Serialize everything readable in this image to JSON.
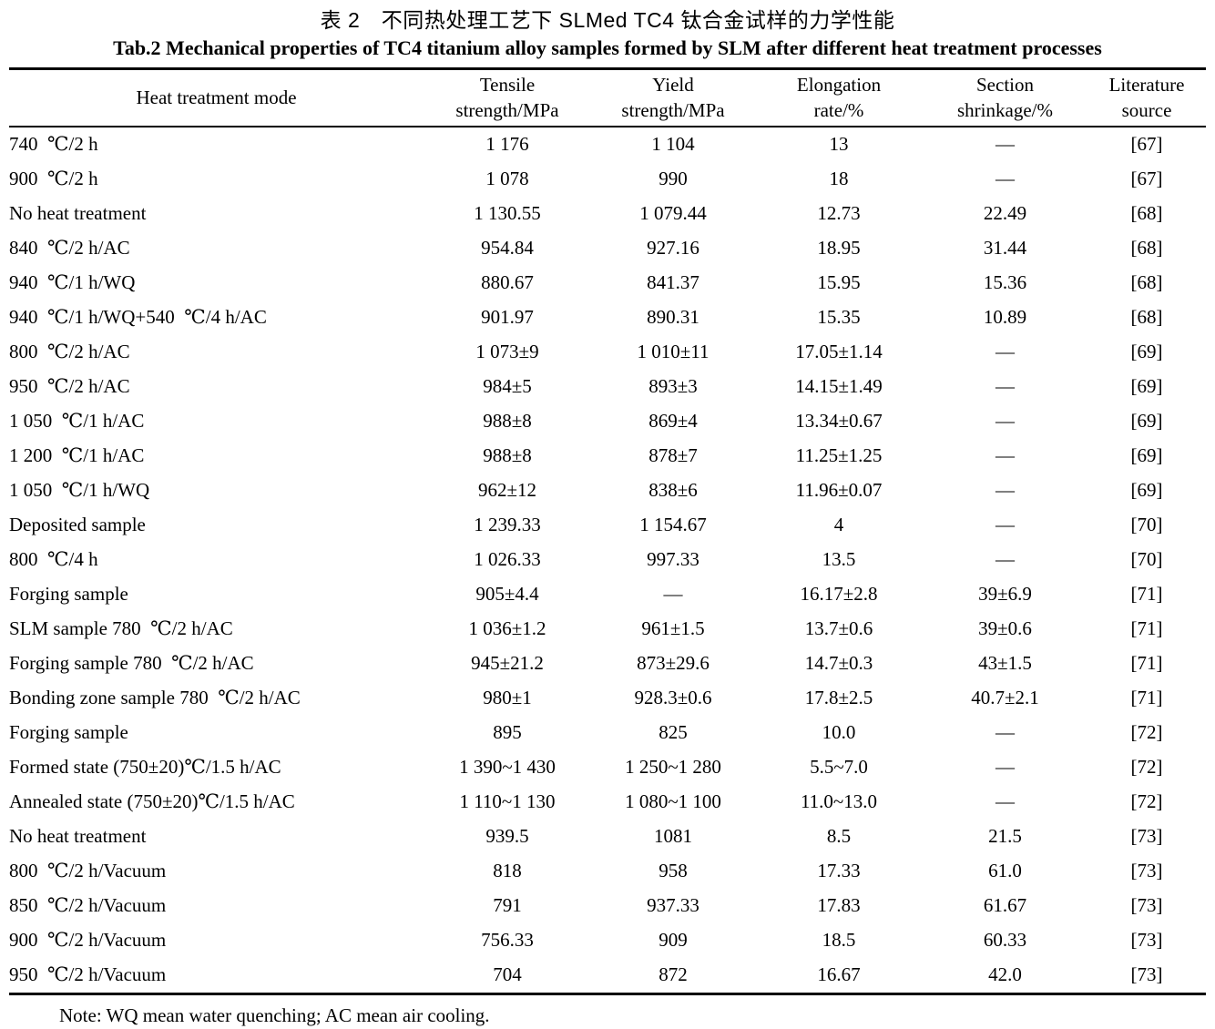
{
  "title_zh": "表 2　不同热处理工艺下 SLMed TC4 钛合金试样的力学性能",
  "title_en": "Tab.2 Mechanical properties of TC4 titanium alloy samples formed by SLM after different heat treatment processes",
  "table": {
    "columns": [
      {
        "label": "Heat treatment mode",
        "label2": ""
      },
      {
        "label": "Tensile",
        "label2": "strength/MPa"
      },
      {
        "label": "Yield",
        "label2": "strength/MPa"
      },
      {
        "label": "Elongation",
        "label2": "rate/%"
      },
      {
        "label": "Section",
        "label2": "shrinkage/%"
      },
      {
        "label": "Literature",
        "label2": "source"
      }
    ],
    "rows": [
      [
        "740 ℃/2 h",
        "1 176",
        "1 104",
        "13",
        "—",
        "[67]"
      ],
      [
        "900 ℃/2 h",
        "1 078",
        "990",
        "18",
        "—",
        "[67]"
      ],
      [
        "No heat treatment",
        "1 130.55",
        "1 079.44",
        "12.73",
        "22.49",
        "[68]"
      ],
      [
        "840 ℃/2 h/AC",
        "954.84",
        "927.16",
        "18.95",
        "31.44",
        "[68]"
      ],
      [
        "940 ℃/1 h/WQ",
        "880.67",
        "841.37",
        "15.95",
        "15.36",
        "[68]"
      ],
      [
        "940 ℃/1 h/WQ+540 ℃/4 h/AC",
        "901.97",
        "890.31",
        "15.35",
        "10.89",
        "[68]"
      ],
      [
        "800 ℃/2 h/AC",
        "1 073±9",
        "1 010±11",
        "17.05±1.14",
        "—",
        "[69]"
      ],
      [
        "950 ℃/2 h/AC",
        "984±5",
        "893±3",
        "14.15±1.49",
        "—",
        "[69]"
      ],
      [
        "1 050 ℃/1 h/AC",
        "988±8",
        "869±4",
        "13.34±0.67",
        "—",
        "[69]"
      ],
      [
        "1 200 ℃/1 h/AC",
        "988±8",
        "878±7",
        "11.25±1.25",
        "—",
        "[69]"
      ],
      [
        "1 050 ℃/1 h/WQ",
        "962±12",
        "838±6",
        "11.96±0.07",
        "—",
        "[69]"
      ],
      [
        "Deposited sample",
        "1 239.33",
        "1 154.67",
        "4",
        "—",
        "[70]"
      ],
      [
        "800 ℃/4 h",
        "1 026.33",
        "997.33",
        "13.5",
        "—",
        "[70]"
      ],
      [
        "Forging sample",
        "905±4.4",
        "—",
        "16.17±2.8",
        "39±6.9",
        "[71]"
      ],
      [
        "SLM sample 780 ℃/2 h/AC",
        "1 036±1.2",
        "961±1.5",
        "13.7±0.6",
        "39±0.6",
        "[71]"
      ],
      [
        "Forging sample 780 ℃/2 h/AC",
        "945±21.2",
        "873±29.6",
        "14.7±0.3",
        "43±1.5",
        "[71]"
      ],
      [
        "Bonding zone sample 780 ℃/2 h/AC",
        "980±1",
        "928.3±0.6",
        "17.8±2.5",
        "40.7±2.1",
        "[71]"
      ],
      [
        "Forging sample",
        "895",
        "825",
        "10.0",
        "—",
        "[72]"
      ],
      [
        "Formed state (750±20)℃/1.5 h/AC",
        "1 390~1 430",
        "1 250~1 280",
        "5.5~7.0",
        "—",
        "[72]"
      ],
      [
        "Annealed state (750±20)℃/1.5 h/AC",
        "1 110~1 130",
        "1 080~1 100",
        "11.0~13.0",
        "—",
        "[72]"
      ],
      [
        "No heat treatment",
        "939.5",
        "1081",
        "8.5",
        "21.5",
        "[73]"
      ],
      [
        "800 ℃/2 h/Vacuum",
        "818",
        "958",
        "17.33",
        "61.0",
        "[73]"
      ],
      [
        "850 ℃/2 h/Vacuum",
        "791",
        "937.33",
        "17.83",
        "61.67",
        "[73]"
      ],
      [
        "900 ℃/2 h/Vacuum",
        "756.33",
        "909",
        "18.5",
        "60.33",
        "[73]"
      ],
      [
        "950 ℃/2 h/Vacuum",
        "704",
        "872",
        "16.67",
        "42.0",
        "[73]"
      ]
    ]
  },
  "note": "Note: WQ mean water quenching; AC mean air cooling."
}
